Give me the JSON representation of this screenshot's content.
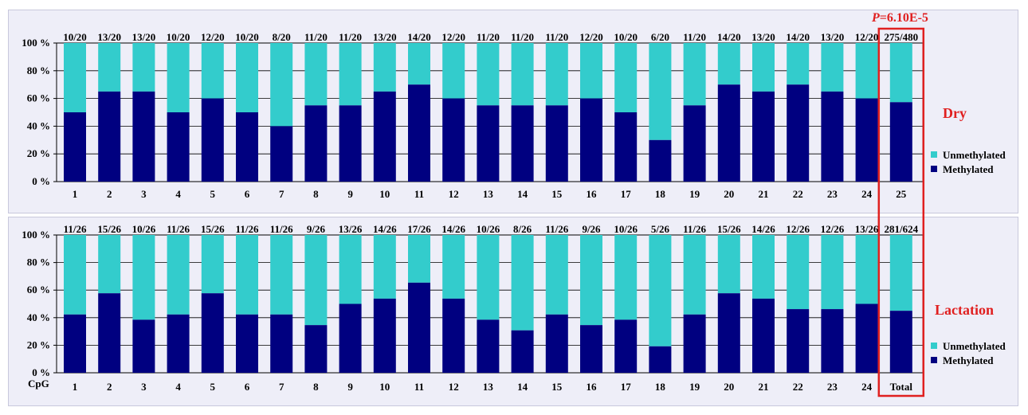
{
  "colors": {
    "methylated": "#000080",
    "unmethylated": "#33cccc",
    "highlight": "#e02020",
    "gridline": "#000000"
  },
  "pvalue": {
    "prefix": "P",
    "text": "=6.10E-5"
  },
  "chart_data": [
    {
      "type": "bar",
      "stacked": true,
      "group_label": "Dry",
      "y_tick_labels": [
        "0 %",
        "20 %",
        "40 %",
        "60 %",
        "80 %",
        "100 %"
      ],
      "ylim": [
        0,
        100
      ],
      "x_axis_label": "",
      "categories": [
        "1",
        "2",
        "3",
        "4",
        "5",
        "6",
        "7",
        "8",
        "9",
        "10",
        "11",
        "12",
        "13",
        "14",
        "15",
        "16",
        "17",
        "18",
        "19",
        "20",
        "21",
        "22",
        "23",
        "24",
        "25"
      ],
      "fraction_labels": [
        "10/20",
        "13/20",
        "13/20",
        "10/20",
        "12/20",
        "10/20",
        "8/20",
        "11/20",
        "11/20",
        "13/20",
        "14/20",
        "12/20",
        "11/20",
        "11/20",
        "11/20",
        "12/20",
        "10/20",
        "6/20",
        "11/20",
        "14/20",
        "13/20",
        "14/20",
        "13/20",
        "12/20",
        "275/480"
      ],
      "series": [
        {
          "name": "Methylated",
          "values": [
            50,
            65,
            65,
            50,
            60,
            50,
            40,
            55,
            55,
            65,
            70,
            60,
            55,
            55,
            55,
            60,
            50,
            30,
            55,
            70,
            65,
            70,
            65,
            60,
            57.3
          ]
        },
        {
          "name": "Unmethylated",
          "values": [
            50,
            35,
            35,
            50,
            40,
            50,
            60,
            45,
            45,
            35,
            30,
            40,
            45,
            45,
            45,
            40,
            50,
            70,
            45,
            30,
            35,
            30,
            35,
            40,
            42.7
          ]
        }
      ],
      "legend": [
        "Unmethylated",
        "Methylated"
      ],
      "legend_position": "right",
      "highlighted_category": "25"
    },
    {
      "type": "bar",
      "stacked": true,
      "group_label": "Lactation",
      "y_tick_labels": [
        "0 %",
        "20 %",
        "40 %",
        "60 %",
        "80 %",
        "100 %"
      ],
      "ylim": [
        0,
        100
      ],
      "x_axis_label": "CpG",
      "categories": [
        "1",
        "2",
        "3",
        "4",
        "5",
        "6",
        "7",
        "8",
        "9",
        "10",
        "11",
        "12",
        "13",
        "14",
        "15",
        "16",
        "17",
        "18",
        "19",
        "20",
        "21",
        "22",
        "23",
        "24",
        "Total"
      ],
      "fraction_labels": [
        "11/26",
        "15/26",
        "10/26",
        "11/26",
        "15/26",
        "11/26",
        "11/26",
        "9/26",
        "13/26",
        "14/26",
        "17/26",
        "14/26",
        "10/26",
        "8/26",
        "11/26",
        "9/26",
        "10/26",
        "5/26",
        "11/26",
        "15/26",
        "14/26",
        "12/26",
        "12/26",
        "13/26",
        "281/624"
      ],
      "series": [
        {
          "name": "Methylated",
          "values": [
            42.3,
            57.7,
            38.5,
            42.3,
            57.7,
            42.3,
            42.3,
            34.6,
            50,
            53.8,
            65.4,
            53.8,
            38.5,
            30.8,
            42.3,
            34.6,
            38.5,
            19.2,
            42.3,
            57.7,
            53.8,
            46.2,
            46.2,
            50,
            45
          ]
        },
        {
          "name": "Unmethylated",
          "values": [
            57.7,
            42.3,
            61.5,
            57.7,
            42.3,
            57.7,
            57.7,
            65.4,
            50,
            46.2,
            34.6,
            46.2,
            61.5,
            69.2,
            57.7,
            65.4,
            61.5,
            80.8,
            57.7,
            42.3,
            46.2,
            53.8,
            53.8,
            50,
            55
          ]
        }
      ],
      "legend": [
        "Unmethylated",
        "Methylated"
      ],
      "legend_position": "right",
      "highlighted_category": "Total"
    }
  ]
}
